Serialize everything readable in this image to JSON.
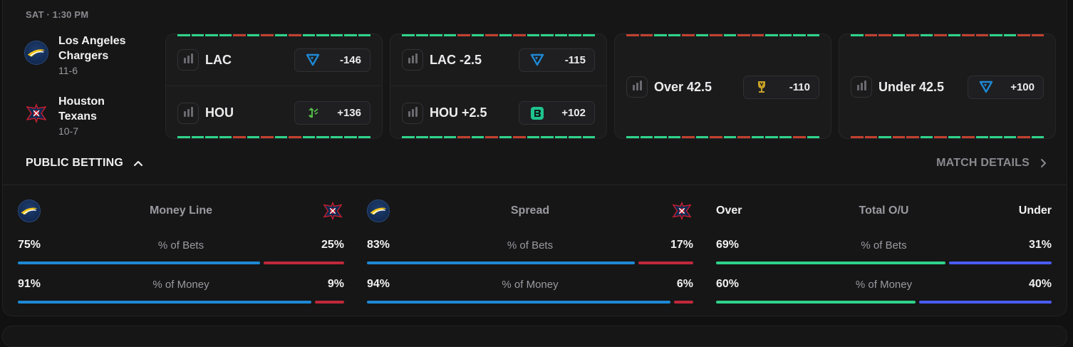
{
  "game": {
    "time": "SAT · 1:30 PM",
    "away": {
      "name": "Los Angeles Chargers",
      "record": "11-6",
      "logo_icon": "chargers-logo-icon"
    },
    "home": {
      "name": "Houston Texans",
      "record": "10-7",
      "logo_icon": "texans-logo-icon"
    }
  },
  "markets": [
    {
      "type": "moneyline",
      "rows": [
        {
          "label": "LAC",
          "price": "-146",
          "book_icon": "fanduel-icon"
        },
        {
          "label": "HOU",
          "price": "+136",
          "book_icon": "draftkings-icon"
        }
      ],
      "stripe_top": [
        "g",
        "g",
        "g",
        "g",
        "r",
        "g",
        "r",
        "g",
        "r",
        "g",
        "g",
        "g",
        "g",
        "g"
      ],
      "stripe_bottom": [
        "g",
        "g",
        "g",
        "g",
        "r",
        "g",
        "r",
        "g",
        "r",
        "g",
        "g",
        "g",
        "g",
        "g"
      ]
    },
    {
      "type": "spread",
      "rows": [
        {
          "label": "LAC -2.5",
          "price": "-115",
          "book_icon": "fanduel-icon"
        },
        {
          "label": "HOU +2.5",
          "price": "+102",
          "book_icon": "betrivers-icon"
        }
      ],
      "stripe_top": [
        "g",
        "g",
        "g",
        "g",
        "r",
        "g",
        "r",
        "g",
        "r",
        "g",
        "g",
        "g",
        "g",
        "g"
      ],
      "stripe_bottom": [
        "g",
        "g",
        "g",
        "g",
        "r",
        "g",
        "r",
        "g",
        "r",
        "g",
        "g",
        "g",
        "g",
        "g"
      ]
    },
    {
      "type": "over",
      "rows": [
        {
          "label": "Over 42.5",
          "price": "-110",
          "book_icon": "trophy-icon"
        }
      ],
      "stripe_top": [
        "r",
        "r",
        "g",
        "g",
        "r",
        "g",
        "r",
        "g",
        "r",
        "r",
        "g",
        "g",
        "g",
        "g"
      ],
      "stripe_bottom": [
        "g",
        "g",
        "g",
        "g",
        "r",
        "g",
        "r",
        "g",
        "r",
        "g",
        "g",
        "g",
        "r",
        "g"
      ]
    },
    {
      "type": "under",
      "rows": [
        {
          "label": "Under 42.5",
          "price": "+100",
          "book_icon": "fanduel-icon"
        }
      ],
      "stripe_top": [
        "g",
        "r",
        "r",
        "g",
        "r",
        "g",
        "r",
        "g",
        "r",
        "r",
        "g",
        "g",
        "r",
        "r"
      ],
      "stripe_bottom": [
        "r",
        "r",
        "g",
        "r",
        "r",
        "g",
        "r",
        "g",
        "r",
        "g",
        "g",
        "g",
        "r",
        "g"
      ]
    }
  ],
  "public_betting": {
    "title": "PUBLIC BETTING",
    "details_label": "MATCH DETAILS",
    "bets_label": "% of Bets",
    "money_label": "% of Money",
    "sections": [
      {
        "title": "Money Line",
        "left_head": "",
        "right_head": "",
        "bets": {
          "left": "75%",
          "right": "25%",
          "left_value": 75
        },
        "money": {
          "left": "91%",
          "right": "9%",
          "left_value": 91
        },
        "left_color": "#1e88d4",
        "right_color": "#c0283a"
      },
      {
        "title": "Spread",
        "left_head": "",
        "right_head": "",
        "bets": {
          "left": "83%",
          "right": "17%",
          "left_value": 83
        },
        "money": {
          "left": "94%",
          "right": "6%",
          "left_value": 94
        },
        "left_color": "#1e88d4",
        "right_color": "#c0283a"
      },
      {
        "title": "Total O/U",
        "left_head": "Over",
        "right_head": "Under",
        "bets": {
          "left": "69%",
          "right": "31%",
          "left_value": 69
        },
        "money": {
          "left": "60%",
          "right": "40%",
          "left_value": 60
        },
        "left_color": "#2fd38a",
        "right_color": "#4a5cf5"
      }
    ]
  }
}
